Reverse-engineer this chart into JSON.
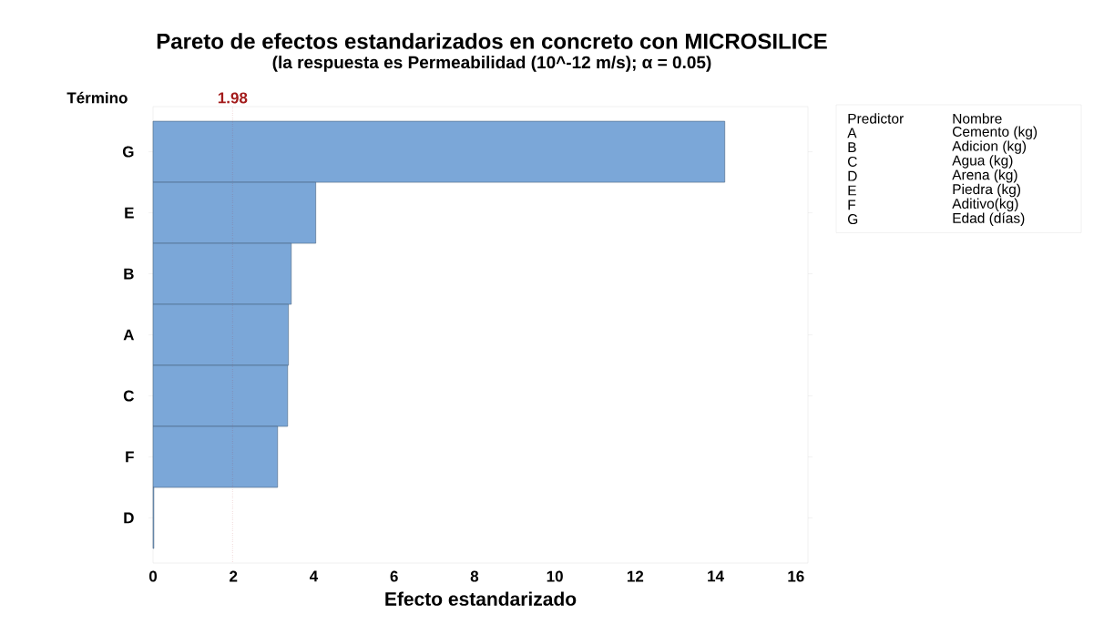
{
  "chart_data": {
    "type": "bar",
    "orientation": "horizontal",
    "title": "Pareto de efectos estandarizados en concreto con MICROSILICE",
    "subtitle": "(la respuesta es Permeabilidad (10^-12 m/s); α = 0.05)",
    "xlabel": "Efecto estandarizado",
    "ylabel": "Término",
    "categories": [
      "G",
      "E",
      "B",
      "A",
      "C",
      "F",
      "D"
    ],
    "values": [
      14.23,
      4.05,
      3.44,
      3.37,
      3.35,
      3.1,
      0.02
    ],
    "color": "#7ba7d8",
    "xlim": [
      0,
      16.3
    ],
    "xticks": [
      0,
      2,
      4,
      6,
      8,
      10,
      12,
      14,
      16
    ],
    "ref_lines": [
      {
        "axis": "x",
        "value": 1.98,
        "label": "1.98",
        "color": "#a31b1b",
        "line_style": "dotted"
      }
    ],
    "annotations": [
      "Predictor",
      "Nombre",
      "A",
      "Cemento (kg)",
      "B",
      "Adicion (kg)",
      "C",
      "Agua (kg)",
      "D",
      "Arena (kg)",
      "E",
      "Piedra (kg)",
      "F",
      "Aditivo(kg)",
      "G",
      "Edad (días)"
    ]
  }
}
